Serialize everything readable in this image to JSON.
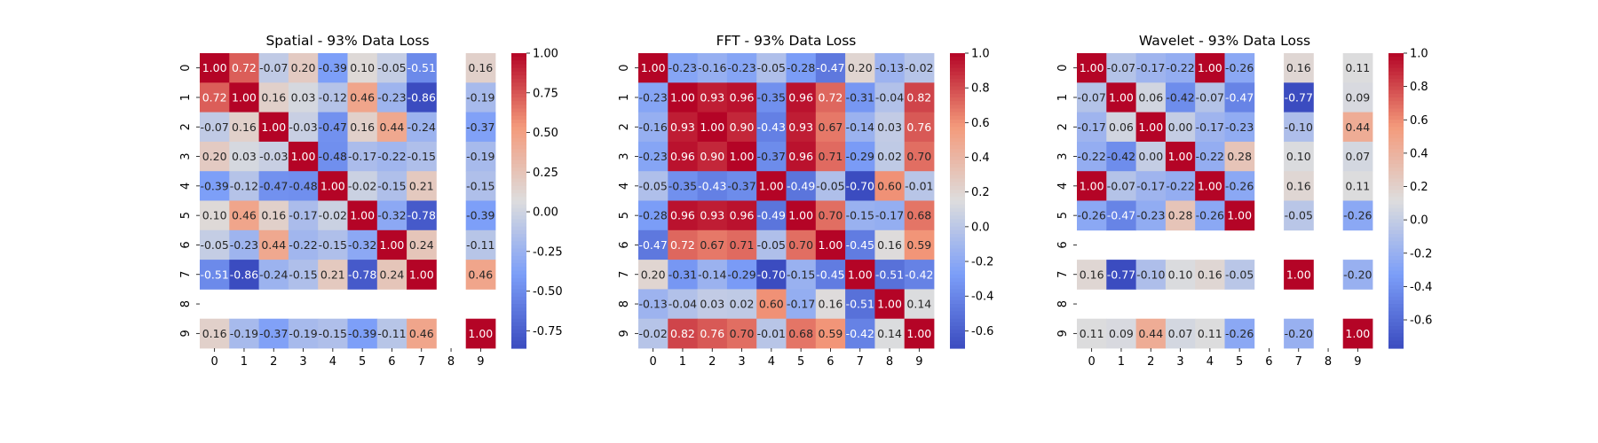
{
  "chart_data": [
    {
      "type": "heatmap",
      "title": "Spatial - 93% Data Loss",
      "x_labels": [
        "0",
        "1",
        "2",
        "3",
        "4",
        "5",
        "6",
        "7",
        "8",
        "9"
      ],
      "y_labels": [
        "0",
        "1",
        "2",
        "3",
        "4",
        "5",
        "6",
        "7",
        "8",
        "9"
      ],
      "colorbar": {
        "min": -0.86,
        "max": 1.0,
        "ticks": [
          "1.00",
          "0.75",
          "0.50",
          "0.25",
          "0.00",
          "-0.25",
          "-0.50",
          "-0.75"
        ],
        "tick_values": [
          1.0,
          0.75,
          0.5,
          0.25,
          0.0,
          -0.25,
          -0.5,
          -0.75
        ]
      },
      "colormap": "coolwarm",
      "missing": "blank (NaN)",
      "values": [
        [
          1.0,
          0.72,
          -0.07,
          0.2,
          -0.39,
          0.1,
          -0.05,
          -0.51,
          null,
          0.16
        ],
        [
          0.72,
          1.0,
          0.16,
          0.03,
          -0.12,
          0.46,
          -0.23,
          -0.86,
          null,
          -0.19
        ],
        [
          -0.07,
          0.16,
          1.0,
          -0.03,
          -0.47,
          0.16,
          0.44,
          -0.24,
          null,
          -0.37
        ],
        [
          0.2,
          0.03,
          -0.03,
          1.0,
          -0.48,
          -0.17,
          -0.22,
          -0.15,
          null,
          -0.19
        ],
        [
          -0.39,
          -0.12,
          -0.47,
          -0.48,
          1.0,
          -0.02,
          -0.15,
          0.21,
          null,
          -0.15
        ],
        [
          0.1,
          0.46,
          0.16,
          -0.17,
          -0.02,
          1.0,
          -0.32,
          -0.78,
          null,
          -0.39
        ],
        [
          -0.05,
          -0.23,
          0.44,
          -0.22,
          -0.15,
          -0.32,
          1.0,
          0.24,
          null,
          -0.11
        ],
        [
          -0.51,
          -0.86,
          -0.24,
          -0.15,
          0.21,
          -0.78,
          0.24,
          1.0,
          null,
          0.46
        ],
        [
          null,
          null,
          null,
          null,
          null,
          null,
          null,
          null,
          null,
          null
        ],
        [
          0.16,
          -0.19,
          -0.37,
          -0.19,
          -0.15,
          -0.39,
          -0.11,
          0.46,
          null,
          1.0
        ]
      ]
    },
    {
      "type": "heatmap",
      "title": "FFT - 93% Data Loss",
      "x_labels": [
        "0",
        "1",
        "2",
        "3",
        "4",
        "5",
        "6",
        "7",
        "8",
        "9"
      ],
      "y_labels": [
        "0",
        "1",
        "2",
        "3",
        "4",
        "5",
        "6",
        "7",
        "8",
        "9"
      ],
      "colorbar": {
        "min": -0.7,
        "max": 1.0,
        "ticks": [
          "1.0",
          "0.8",
          "0.6",
          "0.4",
          "0.2",
          "0.0",
          "-0.2",
          "-0.4",
          "-0.6"
        ],
        "tick_values": [
          1.0,
          0.8,
          0.6,
          0.4,
          0.2,
          0.0,
          -0.2,
          -0.4,
          -0.6
        ]
      },
      "colormap": "coolwarm",
      "values": [
        [
          1.0,
          -0.23,
          -0.16,
          -0.23,
          -0.05,
          -0.28,
          -0.47,
          0.2,
          -0.13,
          -0.02
        ],
        [
          -0.23,
          1.0,
          0.93,
          0.96,
          -0.35,
          0.96,
          0.72,
          -0.31,
          -0.04,
          0.82
        ],
        [
          -0.16,
          0.93,
          1.0,
          0.9,
          -0.43,
          0.93,
          0.67,
          -0.14,
          0.03,
          0.76
        ],
        [
          -0.23,
          0.96,
          0.9,
          1.0,
          -0.37,
          0.96,
          0.71,
          -0.29,
          0.02,
          0.7
        ],
        [
          -0.05,
          -0.35,
          -0.43,
          -0.37,
          1.0,
          -0.49,
          -0.05,
          -0.7,
          0.6,
          -0.01
        ],
        [
          -0.28,
          0.96,
          0.93,
          0.96,
          -0.49,
          1.0,
          0.7,
          -0.15,
          -0.17,
          0.68
        ],
        [
          -0.47,
          0.72,
          0.67,
          0.71,
          -0.05,
          0.7,
          1.0,
          -0.45,
          0.16,
          0.59
        ],
        [
          0.2,
          -0.31,
          -0.14,
          -0.29,
          -0.7,
          -0.15,
          -0.45,
          1.0,
          -0.51,
          -0.42
        ],
        [
          -0.13,
          -0.04,
          0.03,
          0.02,
          0.6,
          -0.17,
          0.16,
          -0.51,
          1.0,
          0.14
        ],
        [
          -0.02,
          0.82,
          0.76,
          0.7,
          -0.01,
          0.68,
          0.59,
          -0.42,
          0.14,
          1.0
        ]
      ]
    },
    {
      "type": "heatmap",
      "title": "Wavelet - 93% Data Loss",
      "x_labels": [
        "0",
        "1",
        "2",
        "3",
        "4",
        "5",
        "6",
        "7",
        "8",
        "9"
      ],
      "y_labels": [
        "0",
        "1",
        "2",
        "3",
        "4",
        "5",
        "6",
        "7",
        "8",
        "9"
      ],
      "colorbar": {
        "min": -0.77,
        "max": 1.0,
        "ticks": [
          "1.0",
          "0.8",
          "0.6",
          "0.4",
          "0.2",
          "0.0",
          "-0.2",
          "-0.4",
          "-0.6"
        ],
        "tick_values": [
          1.0,
          0.8,
          0.6,
          0.4,
          0.2,
          0.0,
          -0.2,
          -0.4,
          -0.6
        ]
      },
      "colormap": "coolwarm",
      "missing": "blank (NaN)",
      "values": [
        [
          1.0,
          -0.07,
          -0.17,
          -0.22,
          1.0,
          -0.26,
          null,
          0.16,
          null,
          0.11
        ],
        [
          -0.07,
          1.0,
          0.06,
          -0.42,
          -0.07,
          -0.47,
          null,
          -0.77,
          null,
          0.09
        ],
        [
          -0.17,
          0.06,
          1.0,
          -0.0,
          -0.17,
          -0.23,
          null,
          -0.1,
          null,
          0.44
        ],
        [
          -0.22,
          -0.42,
          -0.0,
          1.0,
          -0.22,
          0.28,
          null,
          0.1,
          null,
          0.07
        ],
        [
          1.0,
          -0.07,
          -0.17,
          -0.22,
          1.0,
          -0.26,
          null,
          0.16,
          null,
          0.11
        ],
        [
          -0.26,
          -0.47,
          -0.23,
          0.28,
          -0.26,
          1.0,
          null,
          -0.05,
          null,
          -0.26
        ],
        [
          null,
          null,
          null,
          null,
          null,
          null,
          null,
          null,
          null,
          null
        ],
        [
          0.16,
          -0.77,
          -0.1,
          0.1,
          0.16,
          -0.05,
          null,
          1.0,
          null,
          -0.2
        ],
        [
          null,
          null,
          null,
          null,
          null,
          null,
          null,
          null,
          null,
          null
        ],
        [
          0.11,
          0.09,
          0.44,
          0.07,
          0.11,
          -0.26,
          null,
          -0.2,
          null,
          1.0
        ]
      ]
    }
  ]
}
